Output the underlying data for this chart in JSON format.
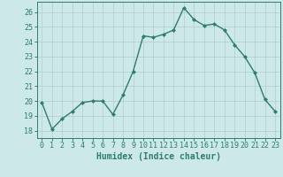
{
  "x": [
    0,
    1,
    2,
    3,
    4,
    5,
    6,
    7,
    8,
    9,
    10,
    11,
    12,
    13,
    14,
    15,
    16,
    17,
    18,
    19,
    20,
    21,
    22,
    23
  ],
  "y": [
    19.9,
    18.1,
    18.8,
    19.3,
    19.9,
    20.0,
    20.0,
    19.1,
    20.4,
    22.0,
    24.4,
    24.3,
    24.5,
    24.8,
    26.3,
    25.5,
    25.1,
    25.2,
    24.8,
    23.8,
    23.0,
    21.9,
    20.1,
    19.3
  ],
  "line_color": "#2e7d6e",
  "marker": "D",
  "markersize": 2.0,
  "linewidth": 1.0,
  "bg_color": "#cce8e8",
  "grid_color": "#b0cccc",
  "xlabel": "Humidex (Indice chaleur)",
  "xlabel_fontsize": 7,
  "ylabel_ticks": [
    18,
    19,
    20,
    21,
    22,
    23,
    24,
    25,
    26
  ],
  "xlim": [
    -0.5,
    23.5
  ],
  "ylim": [
    17.5,
    26.7
  ],
  "tick_fontsize": 6
}
